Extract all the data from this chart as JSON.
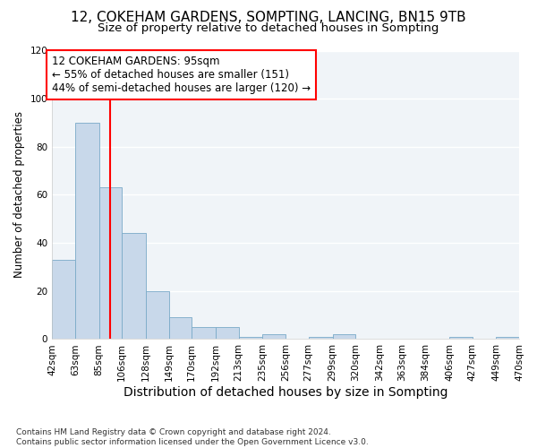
{
  "title_line1": "12, COKEHAM GARDENS, SOMPTING, LANCING, BN15 9TB",
  "title_line2": "Size of property relative to detached houses in Sompting",
  "xlabel": "Distribution of detached houses by size in Sompting",
  "ylabel": "Number of detached properties",
  "bar_color": "#c8d8ea",
  "bar_edge_color": "#7aaac8",
  "vline_x": 95,
  "vline_color": "red",
  "annotation_text": "12 COKEHAM GARDENS: 95sqm\n← 55% of detached houses are smaller (151)\n44% of semi-detached houses are larger (120) →",
  "annotation_box_color": "white",
  "annotation_box_edge_color": "red",
  "footnote": "Contains HM Land Registry data © Crown copyright and database right 2024.\nContains public sector information licensed under the Open Government Licence v3.0.",
  "bin_edges": [
    42,
    63,
    85,
    106,
    128,
    149,
    170,
    192,
    213,
    235,
    256,
    277,
    299,
    320,
    342,
    363,
    384,
    406,
    427,
    449,
    470
  ],
  "bin_labels": [
    "42sqm",
    "63sqm",
    "85sqm",
    "106sqm",
    "128sqm",
    "149sqm",
    "170sqm",
    "192sqm",
    "213sqm",
    "235sqm",
    "256sqm",
    "277sqm",
    "299sqm",
    "320sqm",
    "342sqm",
    "363sqm",
    "384sqm",
    "406sqm",
    "427sqm",
    "449sqm",
    "470sqm"
  ],
  "bar_heights": [
    33,
    90,
    63,
    44,
    20,
    9,
    5,
    5,
    1,
    2,
    0,
    1,
    2,
    0,
    0,
    0,
    0,
    1,
    0,
    1
  ],
  "ylim": [
    0,
    120
  ],
  "yticks": [
    0,
    20,
    40,
    60,
    80,
    100,
    120
  ],
  "background_color": "#ffffff",
  "plot_bg_color": "#f0f4f8",
  "title_fontsize": 11,
  "subtitle_fontsize": 9.5,
  "grid_color": "#ffffff",
  "annotation_fontsize": 8.5,
  "xlabel_fontsize": 10,
  "ylabel_fontsize": 8.5,
  "tick_fontsize": 7.5
}
